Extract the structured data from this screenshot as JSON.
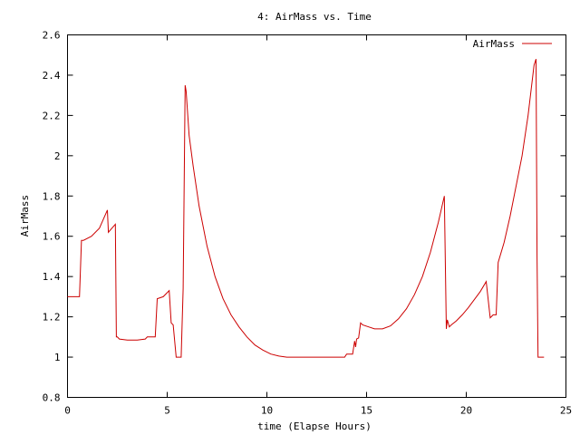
{
  "chart_data": {
    "type": "line",
    "title": "4: AirMass vs. Time",
    "xlabel": "time (Elapse Hours)",
    "ylabel": "AirMass",
    "xlim": [
      0,
      25
    ],
    "ylim": [
      0.8,
      2.6
    ],
    "x_ticks": [
      0,
      5,
      10,
      15,
      20,
      25
    ],
    "y_ticks": [
      0.8,
      1,
      1.2,
      1.4,
      1.6,
      1.8,
      2,
      2.2,
      2.4,
      2.6
    ],
    "x_tick_labels": [
      "0",
      "5",
      "10",
      "15",
      "20",
      "25"
    ],
    "y_tick_labels": [
      "0.8",
      "1",
      "1.2",
      "1.4",
      "1.6",
      "1.8",
      "2",
      "2.2",
      "2.4",
      "2.6"
    ],
    "grid": false,
    "legend_position": "top-right",
    "series": [
      {
        "name": "AirMass",
        "color": "#cc0000",
        "x": [
          0,
          0.6,
          0.7,
          0.8,
          1.2,
          1.6,
          2.0,
          2.05,
          2.4,
          2.45,
          2.5,
          2.6,
          3.0,
          3.5,
          3.9,
          4.0,
          4.4,
          4.5,
          4.8,
          5.1,
          5.2,
          5.3,
          5.45,
          5.5,
          5.7,
          5.8,
          5.9,
          5.95,
          6.1,
          6.3,
          6.6,
          7.0,
          7.4,
          7.8,
          8.2,
          8.6,
          9.0,
          9.4,
          9.8,
          10.2,
          10.6,
          11.0,
          12.0,
          13.0,
          13.9,
          14.0,
          14.3,
          14.4,
          14.45,
          14.5,
          14.6,
          14.7,
          14.8,
          15.1,
          15.4,
          15.8,
          16.2,
          16.6,
          17.0,
          17.4,
          17.8,
          18.2,
          18.6,
          18.9,
          19.0,
          19.05,
          19.15,
          19.25,
          19.5,
          19.8,
          20.1,
          20.4,
          20.7,
          21.0,
          21.2,
          21.25,
          21.35,
          21.5,
          21.6,
          21.9,
          22.2,
          22.5,
          22.8,
          23.1,
          23.4,
          23.5,
          23.55,
          23.6,
          23.8,
          23.9
        ],
        "y": [
          1.3,
          1.3,
          1.58,
          1.58,
          1.6,
          1.64,
          1.73,
          1.62,
          1.66,
          1.1,
          1.1,
          1.09,
          1.085,
          1.085,
          1.09,
          1.1,
          1.1,
          1.29,
          1.3,
          1.33,
          1.17,
          1.16,
          1.0,
          1.0,
          1.0,
          1.34,
          2.35,
          2.32,
          2.1,
          1.95,
          1.75,
          1.55,
          1.4,
          1.29,
          1.21,
          1.15,
          1.1,
          1.06,
          1.035,
          1.015,
          1.005,
          1.0,
          1.0,
          1.0,
          1.0,
          1.015,
          1.015,
          1.08,
          1.05,
          1.09,
          1.095,
          1.17,
          1.16,
          1.15,
          1.14,
          1.14,
          1.155,
          1.19,
          1.24,
          1.31,
          1.4,
          1.52,
          1.67,
          1.8,
          1.14,
          1.185,
          1.15,
          1.16,
          1.18,
          1.21,
          1.245,
          1.285,
          1.325,
          1.375,
          1.195,
          1.2,
          1.21,
          1.21,
          1.47,
          1.57,
          1.7,
          1.85,
          2.0,
          2.2,
          2.45,
          2.48,
          1.5,
          1.0,
          1.0,
          1.0
        ]
      }
    ]
  }
}
